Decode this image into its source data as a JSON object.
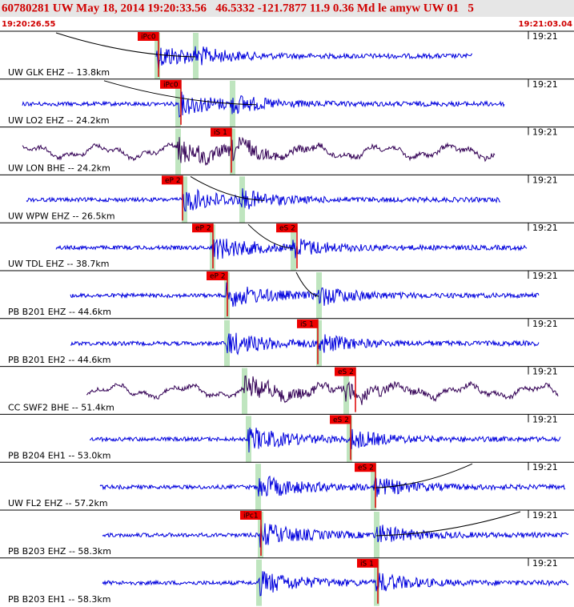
{
  "header": {
    "title": "60780281 UW May 18, 2014 19:20:33.56   46.5332 -121.7877 11.9 0.36 Md le amyw UW 01   5",
    "start_time": "19:20:26.55",
    "end_time": "19:21:03.04"
  },
  "traces": [
    {
      "label": "UW GLK EHZ -- 13.8km",
      "time_mark": "19:21",
      "picks": [
        "iPc0"
      ]
    },
    {
      "label": "UW LO2 EHZ -- 24.2km",
      "time_mark": "19:21",
      "picks": [
        "iPc0"
      ]
    },
    {
      "label": "UW LON BHE -- 24.2km",
      "time_mark": "19:21",
      "picks": [
        "iS 1"
      ]
    },
    {
      "label": "UW WPW EHZ -- 26.5km",
      "time_mark": "19:21",
      "picks": [
        "eP 2"
      ]
    },
    {
      "label": "UW TDL EHZ -- 38.7km",
      "time_mark": "19:21",
      "picks": [
        "eP 2",
        "eS 2"
      ]
    },
    {
      "label": "PB B201 EHZ -- 44.6km",
      "time_mark": "19:21",
      "picks": [
        "eP 2"
      ]
    },
    {
      "label": "PB B201 EH2 -- 44.6km",
      "time_mark": "19:21",
      "picks": [
        "iS 1"
      ]
    },
    {
      "label": "CC SWF2 BHE -- 51.4km",
      "time_mark": "19:21",
      "picks": [
        "eS 2"
      ]
    },
    {
      "label": "PB B204 EH1 -- 53.0km",
      "time_mark": "19:21",
      "picks": [
        "eS 2"
      ]
    },
    {
      "label": "UW FL2 EHZ -- 57.2km",
      "time_mark": "19:21",
      "picks": [
        "eS 2"
      ]
    },
    {
      "label": "PB B203 EHZ -- 58.3km",
      "time_mark": "19:21",
      "picks": [
        "iPc1"
      ]
    },
    {
      "label": "PB B203 EH1 -- 58.3km",
      "time_mark": "19:21",
      "picks": [
        "iS 1"
      ]
    }
  ]
}
